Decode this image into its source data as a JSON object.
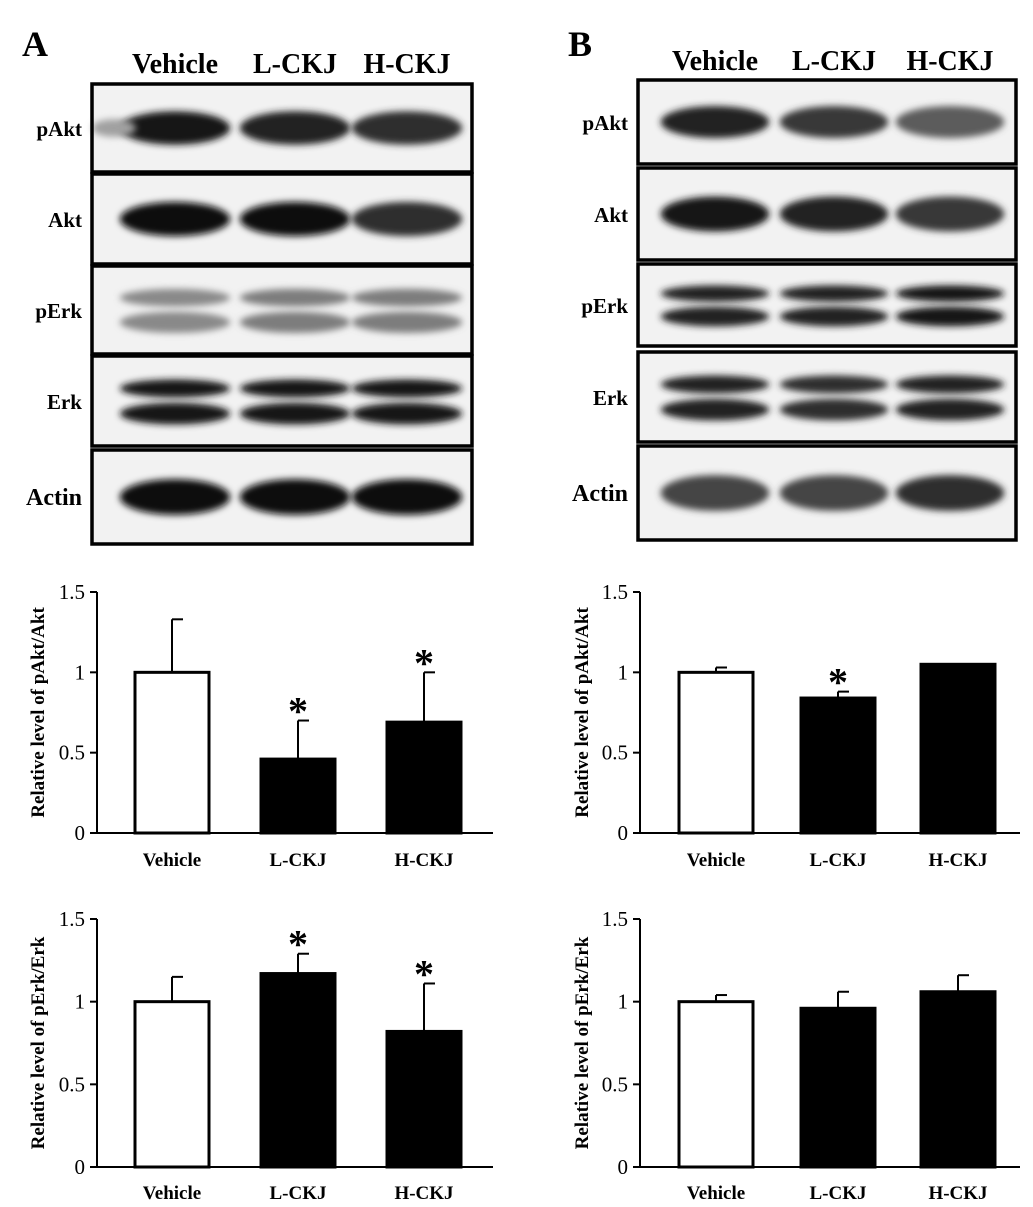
{
  "panels": [
    {
      "letter": "A",
      "lane_labels": [
        "Vehicle",
        "L-CKJ",
        "H-CKJ"
      ],
      "blots": [
        {
          "label": "pAkt",
          "bands": [
            0.95,
            0.9,
            0.85
          ],
          "lead_in": 0.35
        },
        {
          "label": "Akt",
          "bands": [
            1.0,
            1.0,
            0.85
          ],
          "lead_in": 0
        },
        {
          "label": "pErk",
          "bands": [
            0.45,
            0.5,
            0.5
          ],
          "lead_in": 0,
          "double": true
        },
        {
          "label": "Erk",
          "bands": [
            0.95,
            0.95,
            0.95
          ],
          "lead_in": 0,
          "double": true
        },
        {
          "label": "Actin",
          "bands": [
            1.0,
            1.0,
            1.0
          ],
          "lead_in": 0
        }
      ]
    },
    {
      "letter": "B",
      "lane_labels": [
        "Vehicle",
        "L-CKJ",
        "H-CKJ"
      ],
      "blots": [
        {
          "label": "pAkt",
          "bands": [
            0.9,
            0.8,
            0.65
          ],
          "lead_in": 0
        },
        {
          "label": "Akt",
          "bands": [
            0.95,
            0.9,
            0.8
          ],
          "lead_in": 0
        },
        {
          "label": "pErk",
          "bands": [
            0.9,
            0.9,
            0.95
          ],
          "lead_in": 0,
          "double": true
        },
        {
          "label": "Erk",
          "bands": [
            0.9,
            0.85,
            0.9
          ],
          "lead_in": 0,
          "double": true
        },
        {
          "label": "Actin",
          "bands": [
            0.75,
            0.75,
            0.85
          ],
          "lead_in": 0
        }
      ]
    }
  ],
  "chart_data": [
    {
      "panel": "A",
      "type": "bar",
      "ylabel": "Relative level of  pAkt/Akt",
      "categories": [
        "Vehicle",
        "L-CKJ",
        "H-CKJ"
      ],
      "values": [
        1.0,
        0.46,
        0.69
      ],
      "errors": [
        0.33,
        0.24,
        0.31
      ],
      "significant": [
        false,
        true,
        true
      ],
      "significance_mark": "*",
      "fills": [
        "#ffffff",
        "#000000",
        "#000000"
      ],
      "ylim": [
        0,
        1.5
      ],
      "yticks": [
        "0",
        "0.5",
        "1",
        "1.5"
      ]
    },
    {
      "panel": "B",
      "type": "bar",
      "ylabel": "Relative level of  pAkt/Akt",
      "categories": [
        "Vehicle",
        "L-CKJ",
        "H-CKJ"
      ],
      "values": [
        1.0,
        0.84,
        1.05
      ],
      "errors": [
        0.03,
        0.04,
        0.0
      ],
      "significant": [
        false,
        true,
        false
      ],
      "significance_mark": "*",
      "fills": [
        "#ffffff",
        "#000000",
        "#000000"
      ],
      "ylim": [
        0,
        1.5
      ],
      "yticks": [
        "0",
        "0.5",
        "1",
        "1.5"
      ]
    },
    {
      "panel": "A",
      "type": "bar",
      "ylabel": "Relative level of  pErk/Erk",
      "categories": [
        "Vehicle",
        "L-CKJ",
        "H-CKJ"
      ],
      "values": [
        1.0,
        1.17,
        0.82
      ],
      "errors": [
        0.15,
        0.12,
        0.29
      ],
      "significant": [
        false,
        true,
        true
      ],
      "significance_mark": "*",
      "fills": [
        "#ffffff",
        "#000000",
        "#000000"
      ],
      "ylim": [
        0,
        1.5
      ],
      "yticks": [
        "0",
        "0.5",
        "1",
        "1.5"
      ]
    },
    {
      "panel": "B",
      "type": "bar",
      "ylabel": "Relative level of  pErk/Erk",
      "categories": [
        "Vehicle",
        "L-CKJ",
        "H-CKJ"
      ],
      "values": [
        1.0,
        0.96,
        1.06
      ],
      "errors": [
        0.04,
        0.1,
        0.1
      ],
      "significant": [
        false,
        false,
        false
      ],
      "significance_mark": "*",
      "fills": [
        "#ffffff",
        "#000000",
        "#000000"
      ],
      "ylim": [
        0,
        1.5
      ],
      "yticks": [
        "0",
        "0.5",
        "1",
        "1.5"
      ]
    }
  ]
}
